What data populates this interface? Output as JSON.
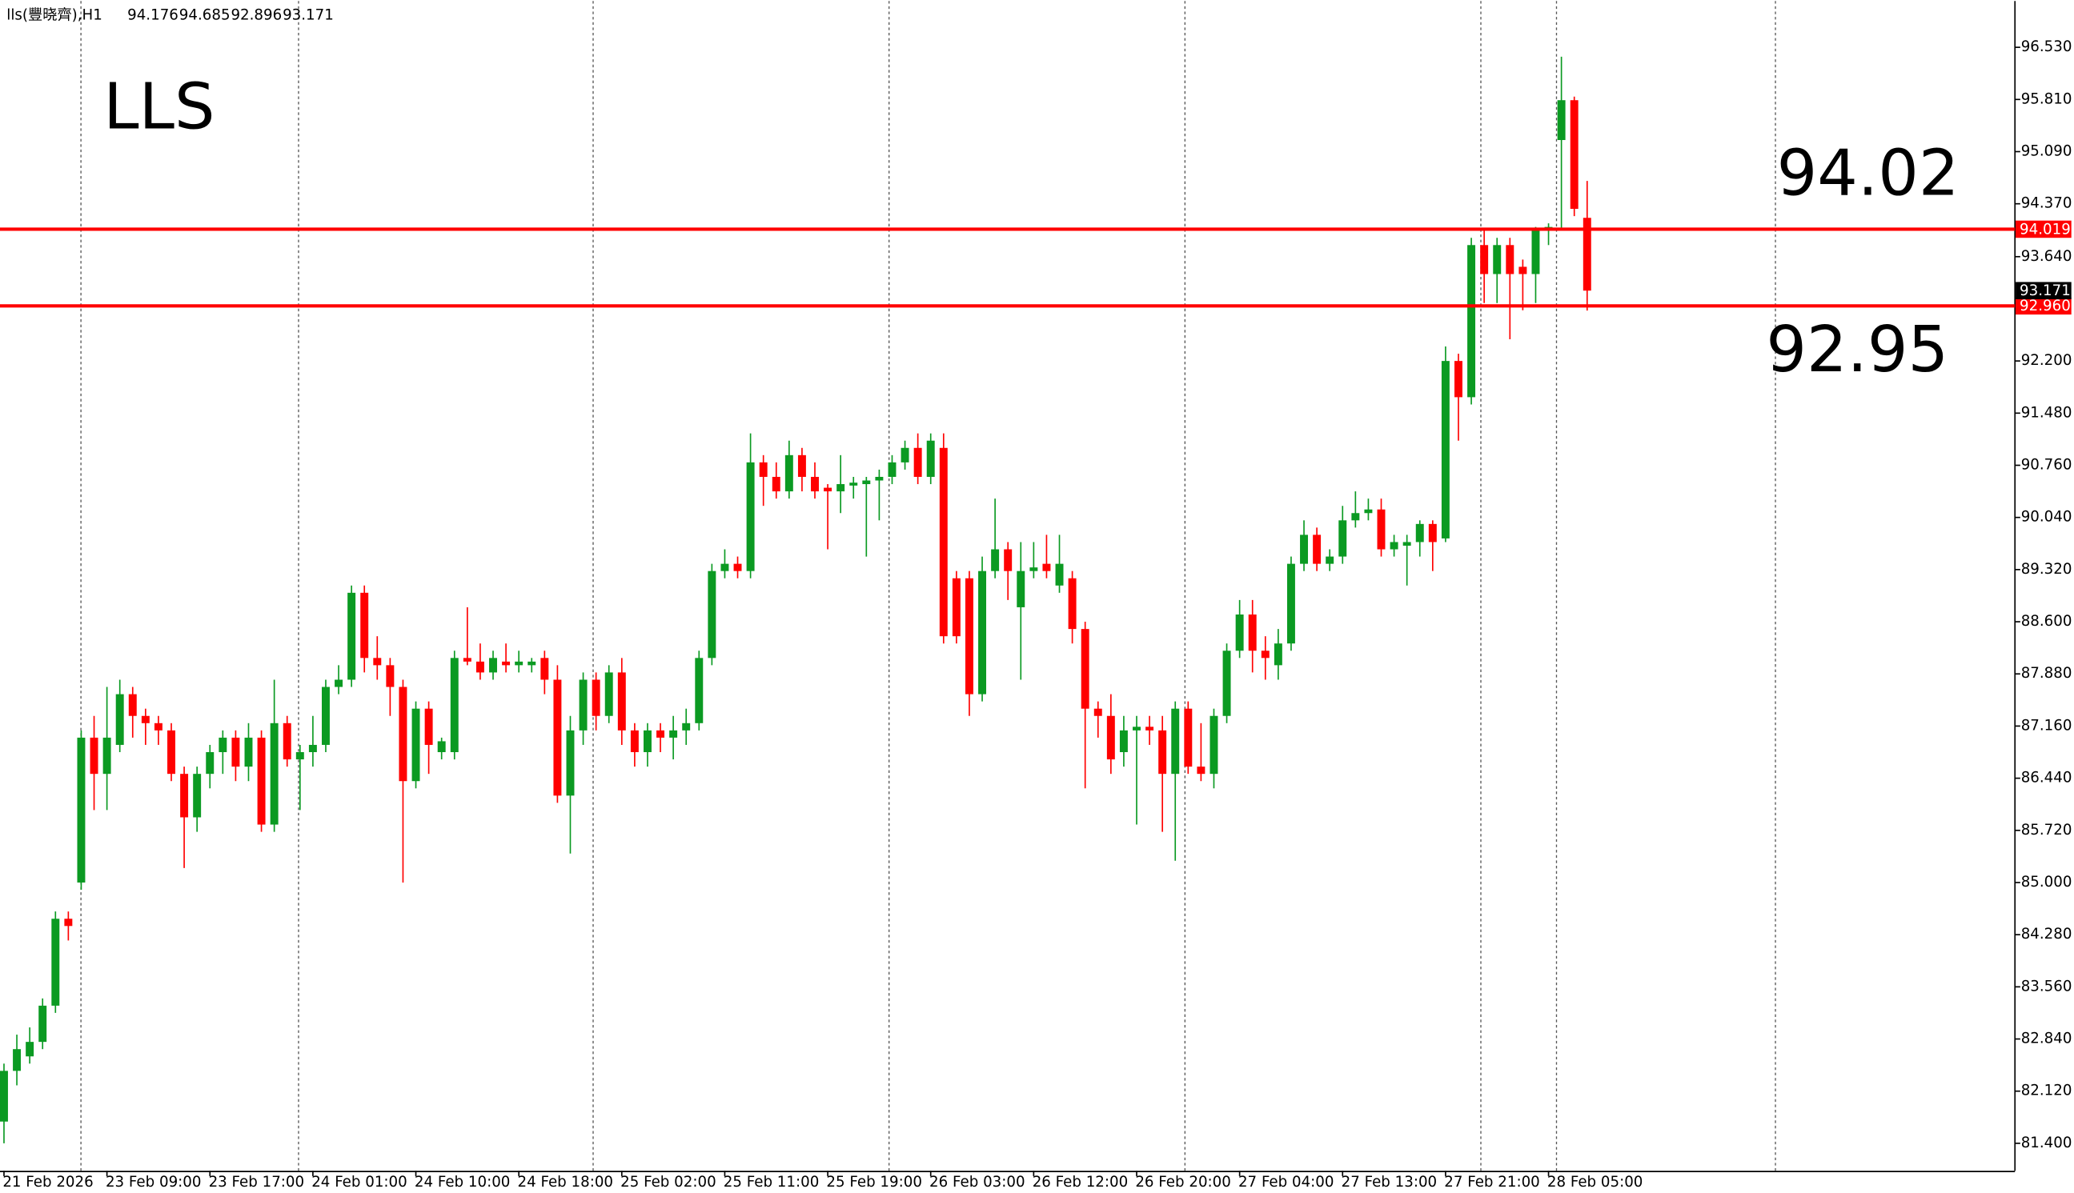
{
  "chart_data": {
    "type": "candlestick",
    "info": "lls(豐晓齊),H1",
    "title": "LLS",
    "annotations": [
      "94.02",
      "92.95"
    ],
    "up_color": "#0b9a22",
    "down_color": "#ff0000",
    "level_color": "#ff0000",
    "levels": [
      {
        "value": 94.019,
        "label": "94.019"
      },
      {
        "value": 92.96,
        "label": "92.960"
      }
    ],
    "ylim": [
      81.02,
      97.17
    ],
    "yticks": [
      {
        "value": 96.53,
        "label": "96.530"
      },
      {
        "value": 95.81,
        "label": "95.810"
      },
      {
        "value": 95.09,
        "label": "95.090"
      },
      {
        "value": 94.37,
        "label": "94.370"
      },
      {
        "value": 93.64,
        "label": "93.640"
      },
      {
        "value": 92.2,
        "label": "92.200"
      },
      {
        "value": 91.48,
        "label": "91.480"
      },
      {
        "value": 90.76,
        "label": "90.760"
      },
      {
        "value": 90.04,
        "label": "90.040"
      },
      {
        "value": 89.32,
        "label": "89.320"
      },
      {
        "value": 88.6,
        "label": "88.600"
      },
      {
        "value": 87.88,
        "label": "87.880"
      },
      {
        "value": 87.16,
        "label": "87.160"
      },
      {
        "value": 86.44,
        "label": "86.440"
      },
      {
        "value": 85.72,
        "label": "85.720"
      },
      {
        "value": 85.0,
        "label": "85.000"
      },
      {
        "value": 84.28,
        "label": "84.280"
      },
      {
        "value": 83.56,
        "label": "83.560"
      },
      {
        "value": 82.84,
        "label": "82.840"
      },
      {
        "value": 82.12,
        "label": "82.120"
      },
      {
        "value": 81.4,
        "label": "81.400"
      }
    ],
    "categories": [
      "21 Feb 2026",
      null,
      null,
      null,
      null,
      null,
      null,
      null,
      "23 Feb 09:00",
      null,
      null,
      null,
      null,
      null,
      null,
      null,
      "23 Feb 17:00",
      null,
      null,
      null,
      null,
      null,
      null,
      null,
      "24 Feb 01:00",
      null,
      null,
      null,
      null,
      null,
      null,
      null,
      "24 Feb 10:00",
      null,
      null,
      null,
      null,
      null,
      null,
      null,
      "24 Feb 18:00",
      null,
      null,
      null,
      null,
      null,
      null,
      null,
      "25 Feb 02:00",
      null,
      null,
      null,
      null,
      null,
      null,
      null,
      "25 Feb 11:00",
      null,
      null,
      null,
      null,
      null,
      null,
      null,
      "25 Feb 19:00",
      null,
      null,
      null,
      null,
      null,
      null,
      null,
      "26 Feb 03:00",
      null,
      null,
      null,
      null,
      null,
      null,
      null,
      "26 Feb 12:00",
      null,
      null,
      null,
      null,
      null,
      null,
      null,
      "26 Feb 20:00",
      null,
      null,
      null,
      null,
      null,
      null,
      null,
      "27 Feb 04:00",
      null,
      null,
      null,
      null,
      null,
      null,
      null,
      "27 Feb 13:00",
      null,
      null,
      null,
      null,
      null,
      null,
      null,
      "27 Feb 21:00",
      null,
      null,
      null,
      null,
      null,
      null,
      null,
      "28 Feb 05:00",
      null,
      null,
      null
    ],
    "open": [
      81.7,
      82.4,
      82.6,
      82.8,
      83.3,
      84.5,
      85.0,
      87.0,
      86.5,
      86.9,
      87.6,
      87.3,
      87.2,
      87.1,
      86.5,
      85.9,
      86.5,
      86.8,
      87.0,
      86.6,
      87.0,
      85.8,
      87.2,
      86.7,
      86.8,
      86.9,
      87.7,
      87.8,
      89.0,
      88.1,
      88.0,
      87.7,
      86.4,
      87.4,
      86.8,
      86.8,
      88.1,
      88.05,
      87.9,
      88.05,
      88.0,
      88.0,
      88.1,
      87.8,
      86.2,
      87.1,
      87.8,
      87.3,
      87.9,
      87.1,
      86.8,
      87.1,
      87.0,
      87.1,
      87.2,
      88.1,
      89.3,
      89.4,
      89.3,
      90.8,
      90.6,
      90.4,
      90.9,
      90.6,
      90.45,
      90.4,
      90.48,
      90.5,
      90.55,
      90.6,
      90.8,
      91.0,
      90.6,
      91.0,
      89.2,
      89.2,
      87.6,
      89.3,
      89.6,
      88.8,
      89.3,
      89.4,
      89.1,
      89.2,
      88.5,
      87.4,
      87.3,
      86.8,
      87.1,
      87.15,
      87.1,
      86.5,
      87.4,
      86.6,
      86.5,
      87.3,
      88.2,
      88.7,
      88.2,
      88.0,
      88.3,
      89.4,
      89.8,
      89.4,
      89.5,
      90.0,
      90.1,
      90.15,
      89.6,
      89.65,
      89.7,
      89.95,
      89.75,
      92.2,
      91.7,
      93.8,
      93.4,
      93.8,
      93.5,
      93.4,
      94.0,
      95.25,
      95.8,
      94.176
    ],
    "high": [
      82.5,
      82.9,
      83.0,
      83.4,
      84.6,
      84.6,
      87.1,
      87.3,
      87.7,
      87.8,
      87.7,
      87.4,
      87.3,
      87.2,
      86.6,
      86.6,
      86.9,
      87.1,
      87.1,
      87.2,
      87.1,
      87.8,
      87.3,
      86.9,
      87.3,
      87.8,
      88.0,
      89.1,
      89.1,
      88.4,
      88.1,
      87.8,
      87.5,
      87.5,
      87.0,
      88.2,
      88.8,
      88.3,
      88.2,
      88.3,
      88.2,
      88.1,
      88.2,
      88.0,
      87.3,
      87.9,
      87.9,
      88.0,
      88.1,
      87.2,
      87.2,
      87.2,
      87.3,
      87.4,
      88.2,
      89.4,
      89.6,
      89.5,
      91.2,
      90.9,
      90.8,
      91.1,
      91.0,
      90.8,
      90.5,
      90.9,
      90.6,
      90.6,
      90.7,
      90.9,
      91.1,
      91.2,
      91.2,
      91.2,
      89.3,
      89.3,
      89.5,
      90.3,
      89.7,
      89.7,
      89.7,
      89.8,
      89.8,
      89.3,
      88.6,
      87.5,
      87.6,
      87.3,
      87.3,
      87.3,
      87.3,
      87.5,
      87.5,
      87.2,
      87.4,
      88.3,
      88.9,
      88.9,
      88.4,
      88.5,
      89.5,
      90.0,
      89.9,
      89.6,
      90.2,
      90.4,
      90.3,
      90.3,
      89.8,
      89.8,
      90.0,
      90.0,
      92.4,
      92.3,
      93.9,
      94.0,
      93.9,
      93.9,
      93.6,
      94.05,
      94.1,
      96.4,
      95.85,
      94.685
    ],
    "low": [
      81.4,
      82.2,
      82.5,
      82.7,
      83.2,
      84.2,
      84.9,
      86.0,
      86.0,
      86.8,
      87.0,
      86.9,
      86.9,
      86.4,
      85.2,
      85.7,
      86.3,
      86.5,
      86.4,
      86.4,
      85.7,
      85.7,
      86.6,
      86.0,
      86.6,
      86.8,
      87.6,
      87.7,
      87.9,
      87.8,
      87.3,
      85.0,
      86.3,
      86.5,
      86.7,
      86.7,
      88.0,
      87.8,
      87.8,
      87.9,
      87.9,
      87.9,
      87.6,
      86.1,
      85.4,
      86.9,
      87.1,
      87.2,
      86.9,
      86.6,
      86.6,
      86.8,
      86.7,
      86.9,
      87.1,
      88.0,
      89.2,
      89.2,
      89.2,
      90.2,
      90.3,
      90.3,
      90.4,
      90.3,
      89.6,
      90.1,
      90.3,
      89.5,
      90.0,
      90.5,
      90.7,
      90.5,
      90.5,
      88.3,
      88.3,
      87.3,
      87.5,
      89.2,
      88.9,
      87.8,
      89.2,
      89.2,
      89.0,
      88.3,
      86.3,
      87.0,
      86.5,
      86.6,
      85.8,
      86.9,
      85.7,
      85.3,
      86.5,
      86.4,
      86.3,
      87.2,
      88.1,
      87.9,
      87.8,
      87.8,
      88.2,
      89.3,
      89.3,
      89.3,
      89.4,
      89.9,
      90.0,
      89.5,
      89.5,
      89.1,
      89.5,
      89.3,
      89.7,
      91.1,
      91.6,
      93.0,
      93.0,
      92.5,
      92.9,
      93.0,
      93.8,
      94.0,
      94.2,
      92.896
    ],
    "close": [
      82.4,
      82.7,
      82.8,
      83.3,
      84.5,
      84.4,
      87.0,
      86.5,
      87.0,
      87.6,
      87.3,
      87.2,
      87.1,
      86.5,
      85.9,
      86.5,
      86.8,
      87.0,
      86.6,
      87.0,
      85.8,
      87.2,
      86.7,
      86.8,
      86.9,
      87.7,
      87.8,
      89.0,
      88.1,
      88.0,
      87.7,
      86.4,
      87.4,
      86.9,
      86.95,
      88.1,
      88.05,
      87.9,
      88.1,
      88.0,
      88.05,
      88.05,
      87.8,
      86.2,
      87.1,
      87.8,
      87.3,
      87.9,
      87.1,
      86.8,
      87.1,
      87.0,
      87.1,
      87.2,
      88.1,
      89.3,
      89.4,
      89.3,
      90.8,
      90.6,
      90.4,
      90.9,
      90.6,
      90.4,
      90.4,
      90.5,
      90.52,
      90.55,
      90.6,
      90.8,
      91.0,
      90.6,
      91.1,
      88.4,
      88.4,
      87.6,
      89.3,
      89.6,
      89.3,
      89.3,
      89.35,
      89.3,
      89.4,
      88.5,
      87.4,
      87.3,
      86.7,
      87.1,
      87.15,
      87.1,
      86.5,
      87.4,
      86.6,
      86.5,
      87.3,
      88.2,
      88.7,
      88.2,
      88.1,
      88.3,
      89.4,
      89.8,
      89.4,
      89.5,
      90.0,
      90.1,
      90.15,
      89.6,
      89.7,
      89.7,
      89.95,
      89.7,
      92.2,
      91.7,
      93.8,
      93.4,
      93.8,
      93.4,
      93.4,
      94.0,
      94.05,
      95.8,
      94.3,
      93.171
    ]
  }
}
